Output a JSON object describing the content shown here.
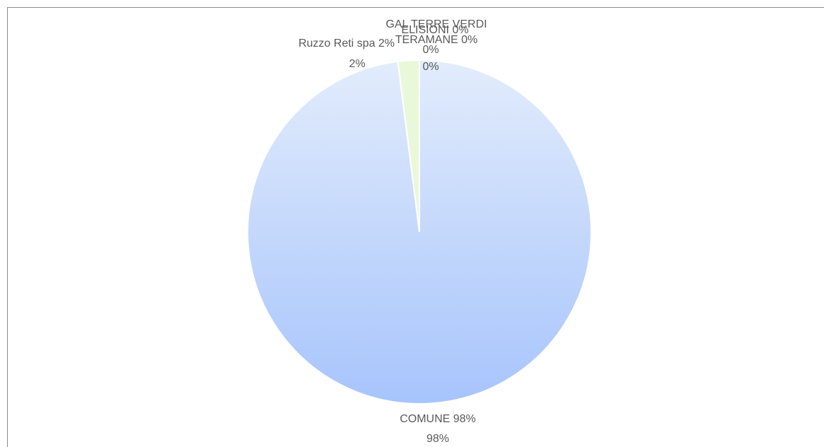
{
  "chart_data": {
    "type": "pie",
    "categories": [
      "COMUNE 98%",
      "Ruzzo Reti spa 2%",
      "GAL TERRE VERDI TERAMANE 0%",
      "ELISIONI 0%"
    ],
    "values": [
      98,
      2,
      0,
      0
    ],
    "value_labels": [
      "98%",
      "2%",
      "0%",
      "0%"
    ],
    "colors": [
      "#bcd3fb",
      "#e9f8d9",
      "#f4e0d0",
      "#e0e0f4"
    ]
  }
}
